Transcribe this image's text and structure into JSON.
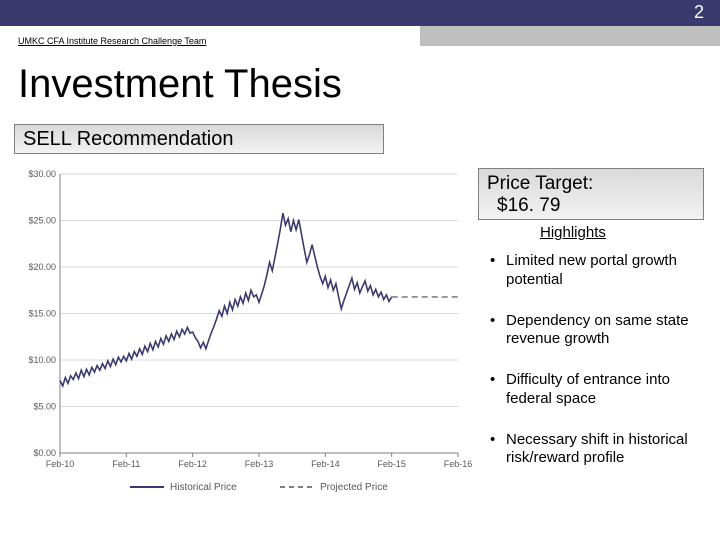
{
  "page_number": "2",
  "team_label": "UMKC CFA Institute Research Challenge Team",
  "title": "Investment Thesis",
  "sell_label": "SELL Recommendation",
  "price_target_line1": "Price Target:",
  "price_target_line2": "$16. 79",
  "highlights_label": "Highlights",
  "bullets": [
    "Limited new portal growth potential",
    "Dependency on same state revenue growth",
    "Difficulty of entrance into federal space",
    "Necessary shift in historical risk/reward profile"
  ],
  "chart": {
    "type": "line",
    "background_color": "#ffffff",
    "grid_color": "#d9d9d9",
    "axis_color": "#808080",
    "label_color": "#595959",
    "label_fontsize": 9,
    "ylim": [
      0,
      30
    ],
    "ytick_step": 5,
    "ytick_prefix": "$",
    "ytick_suffix": ".00",
    "x_categories": [
      "Feb-10",
      "Feb-11",
      "Feb-12",
      "Feb-13",
      "Feb-14",
      "Feb-15",
      "Feb-16"
    ],
    "series": [
      {
        "name": "Historical Price",
        "color": "#3b3a6e",
        "stroke_width": 1.6,
        "dash": "none",
        "legend_label": "Historical Price",
        "data": [
          [
            0.0,
            7.8
          ],
          [
            0.04,
            7.2
          ],
          [
            0.08,
            8.1
          ],
          [
            0.12,
            7.5
          ],
          [
            0.16,
            8.3
          ],
          [
            0.2,
            7.9
          ],
          [
            0.24,
            8.6
          ],
          [
            0.28,
            8.0
          ],
          [
            0.32,
            8.9
          ],
          [
            0.36,
            8.2
          ],
          [
            0.4,
            9.0
          ],
          [
            0.44,
            8.4
          ],
          [
            0.48,
            9.2
          ],
          [
            0.52,
            8.7
          ],
          [
            0.56,
            9.4
          ],
          [
            0.6,
            8.9
          ],
          [
            0.64,
            9.6
          ],
          [
            0.68,
            9.1
          ],
          [
            0.72,
            9.9
          ],
          [
            0.76,
            9.3
          ],
          [
            0.8,
            10.1
          ],
          [
            0.84,
            9.5
          ],
          [
            0.88,
            10.3
          ],
          [
            0.92,
            9.8
          ],
          [
            0.96,
            10.4
          ],
          [
            1.0,
            9.9
          ],
          [
            1.04,
            10.7
          ],
          [
            1.08,
            10.1
          ],
          [
            1.12,
            10.9
          ],
          [
            1.16,
            10.4
          ],
          [
            1.2,
            11.2
          ],
          [
            1.24,
            10.6
          ],
          [
            1.28,
            11.5
          ],
          [
            1.32,
            10.9
          ],
          [
            1.36,
            11.8
          ],
          [
            1.4,
            11.1
          ],
          [
            1.44,
            12.0
          ],
          [
            1.48,
            11.4
          ],
          [
            1.52,
            12.3
          ],
          [
            1.56,
            11.7
          ],
          [
            1.6,
            12.6
          ],
          [
            1.64,
            12.0
          ],
          [
            1.68,
            12.8
          ],
          [
            1.72,
            12.2
          ],
          [
            1.76,
            13.1
          ],
          [
            1.8,
            12.5
          ],
          [
            1.84,
            13.3
          ],
          [
            1.88,
            12.8
          ],
          [
            1.92,
            13.5
          ],
          [
            1.96,
            12.9
          ],
          [
            2.0,
            13.0
          ],
          [
            2.04,
            12.4
          ],
          [
            2.08,
            12.0
          ],
          [
            2.12,
            11.3
          ],
          [
            2.16,
            11.9
          ],
          [
            2.2,
            11.2
          ],
          [
            2.24,
            12.1
          ],
          [
            2.28,
            12.9
          ],
          [
            2.32,
            13.6
          ],
          [
            2.36,
            14.4
          ],
          [
            2.4,
            15.3
          ],
          [
            2.44,
            14.7
          ],
          [
            2.48,
            15.8
          ],
          [
            2.52,
            15.0
          ],
          [
            2.56,
            16.2
          ],
          [
            2.6,
            15.4
          ],
          [
            2.64,
            16.5
          ],
          [
            2.68,
            15.8
          ],
          [
            2.72,
            16.8
          ],
          [
            2.76,
            16.1
          ],
          [
            2.8,
            17.2
          ],
          [
            2.84,
            16.4
          ],
          [
            2.88,
            17.5
          ],
          [
            2.92,
            16.8
          ],
          [
            2.96,
            17.0
          ],
          [
            3.0,
            16.2
          ],
          [
            3.04,
            17.1
          ],
          [
            3.08,
            18.0
          ],
          [
            3.12,
            19.2
          ],
          [
            3.16,
            20.5
          ],
          [
            3.2,
            19.6
          ],
          [
            3.24,
            21.0
          ],
          [
            3.28,
            22.5
          ],
          [
            3.32,
            24.0
          ],
          [
            3.36,
            25.8
          ],
          [
            3.4,
            24.5
          ],
          [
            3.44,
            25.2
          ],
          [
            3.48,
            23.8
          ],
          [
            3.52,
            25.0
          ],
          [
            3.56,
            24.0
          ],
          [
            3.6,
            25.1
          ],
          [
            3.64,
            23.5
          ],
          [
            3.68,
            22.0
          ],
          [
            3.72,
            20.5
          ],
          [
            3.76,
            21.3
          ],
          [
            3.8,
            22.4
          ],
          [
            3.84,
            21.2
          ],
          [
            3.88,
            20.0
          ],
          [
            3.92,
            19.0
          ],
          [
            3.96,
            18.2
          ],
          [
            4.0,
            19.0
          ],
          [
            4.04,
            17.8
          ],
          [
            4.08,
            18.6
          ],
          [
            4.12,
            17.5
          ],
          [
            4.16,
            18.2
          ],
          [
            4.2,
            16.8
          ],
          [
            4.24,
            15.5
          ],
          [
            4.28,
            16.4
          ],
          [
            4.32,
            17.2
          ],
          [
            4.36,
            18.0
          ],
          [
            4.4,
            18.8
          ],
          [
            4.44,
            17.6
          ],
          [
            4.48,
            18.3
          ],
          [
            4.52,
            17.2
          ],
          [
            4.56,
            17.9
          ],
          [
            4.6,
            18.5
          ],
          [
            4.64,
            17.4
          ],
          [
            4.68,
            18.0
          ],
          [
            4.72,
            17.0
          ],
          [
            4.76,
            17.6
          ],
          [
            4.8,
            16.8
          ],
          [
            4.84,
            17.3
          ],
          [
            4.88,
            16.5
          ],
          [
            4.92,
            17.0
          ],
          [
            4.96,
            16.3
          ],
          [
            5.0,
            16.79
          ]
        ]
      },
      {
        "name": "Projected Price",
        "color": "#808080",
        "stroke_width": 1.6,
        "dash": "6,4",
        "legend_label": "Projected Price",
        "data": [
          [
            5.0,
            16.79
          ],
          [
            6.0,
            16.79
          ]
        ]
      }
    ],
    "legend": {
      "position": "bottom",
      "solid_sample_color": "#3b3a6e",
      "dash_sample_color": "#808080"
    }
  }
}
